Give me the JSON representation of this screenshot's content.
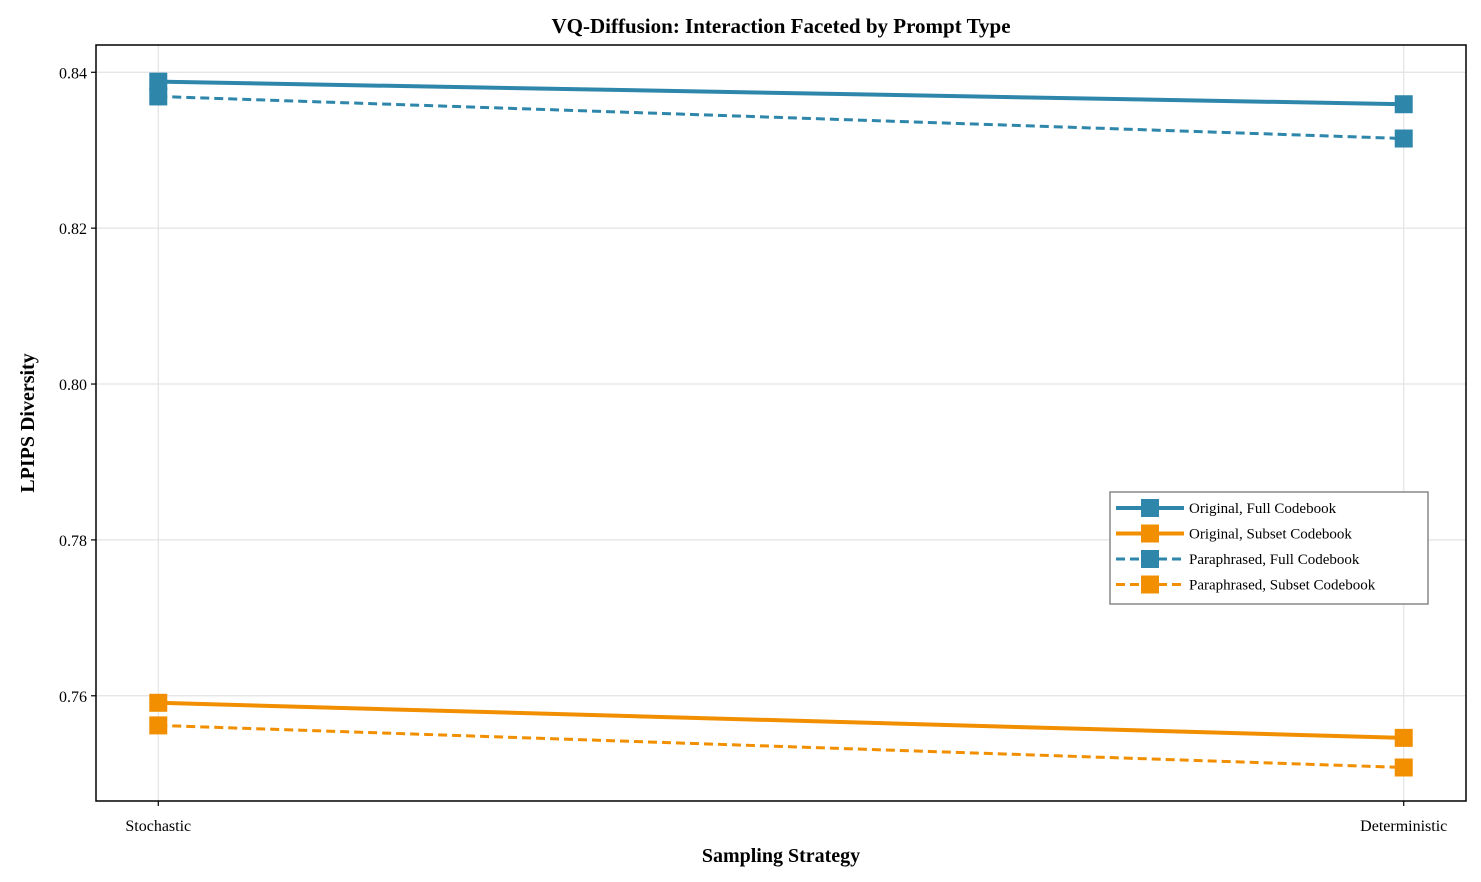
{
  "chart_data": {
    "type": "line",
    "title": "VQ-Diffusion: Interaction Faceted by Prompt Type",
    "xlabel": "Sampling Strategy",
    "ylabel": "LPIPS Diversity",
    "categories": [
      "Stochastic",
      "Deterministic"
    ],
    "ylim": [
      0.7465,
      0.8435
    ],
    "yticks": [
      0.76,
      0.78,
      0.8,
      0.82,
      0.84
    ],
    "ytick_labels": [
      "0.76",
      "0.78",
      "0.80",
      "0.82",
      "0.84"
    ],
    "grid": true,
    "legend_position": "center-right",
    "series": [
      {
        "name": "Original, Full Codebook",
        "values": [
          0.8388,
          0.8359
        ],
        "color": "#2E86AB",
        "dash": "solid",
        "marker": "square"
      },
      {
        "name": "Original, Subset Codebook",
        "values": [
          0.7591,
          0.7546
        ],
        "color": "#F18F01",
        "dash": "solid",
        "marker": "square"
      },
      {
        "name": "Paraphrased, Full Codebook",
        "values": [
          0.8369,
          0.8315
        ],
        "color": "#2E86AB",
        "dash": "dashed",
        "marker": "square"
      },
      {
        "name": "Paraphrased, Subset Codebook",
        "values": [
          0.7562,
          0.7508
        ],
        "color": "#F18F01",
        "dash": "dashed",
        "marker": "square"
      }
    ]
  }
}
